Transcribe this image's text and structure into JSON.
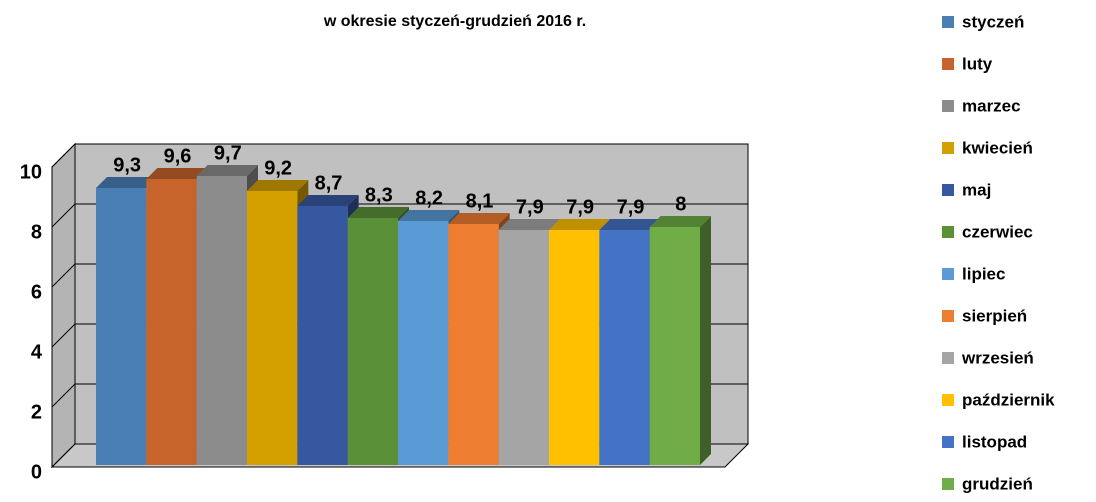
{
  "chart_data": {
    "type": "bar3d",
    "title": "w okresie styczeń-grudzień 2016 r.",
    "categories": [
      "styczeń",
      "luty",
      "marzec",
      "kwiecień",
      "maj",
      "czerwiec",
      "lipiec",
      "sierpień",
      "wrzesień",
      "październik",
      "listopad",
      "grudzień"
    ],
    "values": [
      9.3,
      9.6,
      9.7,
      9.2,
      8.7,
      8.3,
      8.2,
      8.1,
      7.9,
      7.9,
      7.9,
      8
    ],
    "value_labels": [
      "9,3",
      "9,6",
      "9,7",
      "9,2",
      "8,7",
      "8,3",
      "8,2",
      "8,1",
      "7,9",
      "7,9",
      "7,9",
      "8"
    ],
    "colors": [
      "#4a7fb5",
      "#c6642c",
      "#8c8c8c",
      "#d4a000",
      "#3658a0",
      "#5a9038",
      "#5b9bd5",
      "#ed7d31",
      "#a5a5a5",
      "#ffc000",
      "#4472c4",
      "#70ad47"
    ],
    "ylim": [
      0,
      10
    ],
    "yticks": [
      0,
      2,
      4,
      6,
      8,
      10
    ],
    "grid": true,
    "legend": "right"
  }
}
